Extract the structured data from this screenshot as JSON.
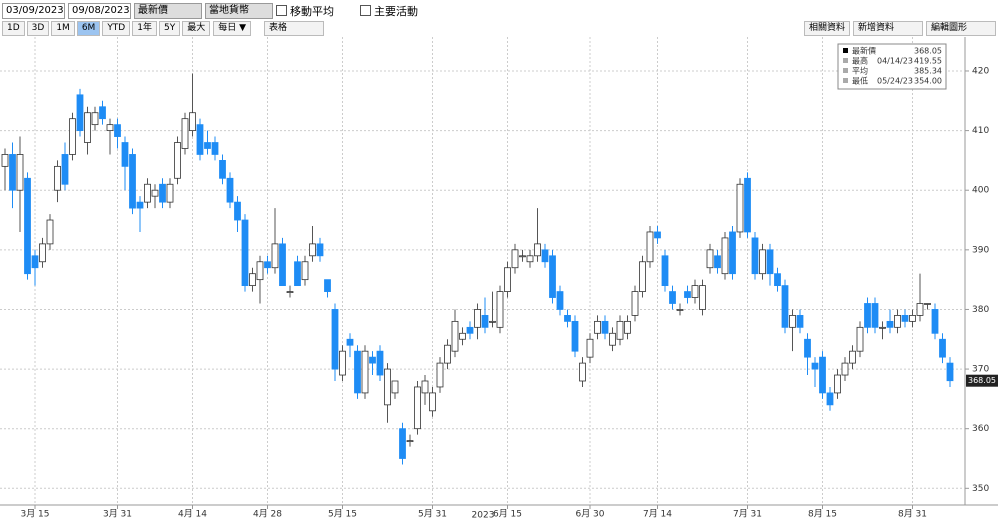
{
  "toolbar": {
    "start_date": "03/09/2023",
    "end_date": "09/08/2023",
    "price_field": "最新價",
    "currency": "當地貨幣",
    "moving_average": "移動平均",
    "key_events": "主要活動",
    "periods": [
      "1D",
      "3D",
      "1M",
      "6M",
      "YTD",
      "1年",
      "5Y",
      "最大"
    ],
    "selected_period": 3,
    "frequency": "每日 ▼",
    "table": "表格",
    "related": "相關資料",
    "add_data": "新增資料",
    "edit_chart": "編輯圖形"
  },
  "chart_data": {
    "type": "candlestick",
    "up_color": "#ffffff",
    "down_color": "#1e8cf5",
    "grid": true,
    "x_title": "2023",
    "categories": [
      null,
      null,
      null,
      null,
      "3月 15",
      null,
      null,
      null,
      null,
      null,
      null,
      null,
      null,
      null,
      null,
      "3月 31",
      null,
      null,
      null,
      null,
      null,
      null,
      null,
      null,
      null,
      "4月 14",
      null,
      null,
      null,
      null,
      null,
      null,
      null,
      null,
      null,
      "4月 28",
      null,
      null,
      null,
      null,
      null,
      null,
      null,
      null,
      null,
      "5月 15",
      null,
      null,
      null,
      null,
      null,
      null,
      null,
      null,
      null,
      null,
      null,
      "5月 31",
      null,
      null,
      null,
      null,
      null,
      null,
      null,
      null,
      null,
      "6月 15",
      null,
      null,
      null,
      null,
      null,
      null,
      null,
      null,
      null,
      null,
      "6月 30",
      null,
      null,
      null,
      null,
      null,
      null,
      null,
      null,
      "7月 14",
      null,
      null,
      null,
      null,
      null,
      null,
      null,
      null,
      null,
      null,
      null,
      "7月 31",
      null,
      null,
      null,
      null,
      null,
      null,
      null,
      null,
      null,
      "8月 15",
      null,
      null,
      null,
      null,
      null,
      null,
      null,
      null,
      null,
      null,
      null,
      "8月 31",
      null,
      null,
      null,
      null,
      null
    ],
    "open": [
      404,
      406,
      400,
      402,
      389,
      388,
      391,
      400,
      406,
      406,
      416,
      408,
      411,
      414,
      410,
      411,
      408,
      406,
      398,
      398,
      399,
      401,
      398,
      402,
      407,
      410,
      411,
      408,
      408,
      405,
      402,
      398,
      395,
      384,
      385,
      388,
      387,
      391,
      383,
      388,
      385,
      389,
      391,
      385,
      380,
      369,
      375,
      373,
      366,
      372,
      373,
      364,
      366,
      360,
      358,
      360,
      366,
      363,
      367,
      371,
      373,
      375,
      377,
      377,
      379,
      378,
      377,
      383,
      387,
      389,
      388,
      389,
      390,
      389,
      383,
      379,
      378,
      368,
      372,
      376,
      378,
      374,
      375,
      376,
      379,
      383,
      388,
      393,
      389,
      383,
      380,
      383,
      382,
      380,
      387,
      389,
      386,
      393,
      393,
      402,
      392,
      386,
      390,
      386,
      384,
      377,
      379,
      375,
      371,
      372,
      366,
      366,
      369,
      371,
      373,
      381,
      381,
      377,
      378,
      377,
      379,
      378,
      379,
      381,
      380,
      375,
      371
    ],
    "high": [
      407,
      408,
      409,
      403,
      390,
      392,
      396,
      405,
      408,
      413,
      417,
      414,
      414,
      415,
      412,
      412,
      409,
      407,
      399,
      402,
      401,
      402,
      402,
      409,
      413,
      419.55,
      412,
      410,
      409,
      406,
      403,
      399,
      396,
      387,
      389,
      389,
      397,
      392,
      384,
      389,
      389,
      394,
      392,
      385,
      381,
      374,
      376,
      374,
      374,
      373,
      374,
      371,
      368,
      361,
      359,
      368,
      369,
      367,
      372,
      375,
      380,
      377,
      378,
      381,
      382,
      383,
      384,
      388,
      391,
      390,
      390,
      397,
      391,
      390,
      384,
      380,
      379,
      372,
      376,
      379,
      379,
      377,
      379,
      379,
      384,
      389,
      394,
      394,
      390,
      384,
      381,
      384,
      385,
      385,
      391,
      390,
      393,
      394,
      402,
      403,
      393,
      391,
      391,
      387,
      385,
      380,
      380,
      376,
      372,
      373,
      367,
      370,
      372,
      374,
      378,
      382,
      382,
      378,
      380,
      380,
      380,
      380,
      386,
      381,
      381,
      376,
      372
    ],
    "low": [
      400,
      397,
      393,
      385,
      384,
      387,
      390,
      398,
      400,
      405,
      409,
      406,
      410,
      411,
      406,
      407,
      400,
      396,
      393,
      397,
      397,
      397,
      397,
      401,
      406,
      409,
      405,
      406,
      405,
      401,
      397,
      393,
      383,
      383,
      381,
      386,
      386,
      384,
      382,
      384,
      384,
      388,
      388,
      382,
      368,
      368,
      372,
      365,
      365,
      369,
      368,
      361,
      365,
      354,
      357,
      359,
      364,
      362,
      366,
      370,
      372,
      374,
      375,
      375,
      376,
      377,
      376,
      382,
      386,
      388,
      387,
      388,
      387,
      381,
      379,
      377,
      372,
      367,
      371,
      375,
      375,
      373,
      374,
      375,
      378,
      382,
      387,
      391,
      383,
      380,
      379,
      381,
      381,
      379,
      386,
      386,
      385,
      385,
      392,
      392,
      385,
      385,
      384,
      383,
      376,
      373,
      376,
      369,
      367,
      365,
      363,
      365,
      368,
      370,
      372,
      376,
      376,
      375,
      376,
      376,
      377,
      377,
      378,
      380,
      375,
      371,
      367
    ],
    "close": [
      406,
      400,
      406,
      386,
      387,
      391,
      395,
      404,
      401,
      412,
      410,
      413,
      413,
      412,
      411,
      409,
      404,
      397,
      397,
      401,
      400,
      398,
      401,
      408,
      412,
      413,
      406,
      407,
      406,
      402,
      398,
      395,
      384,
      386,
      388,
      387,
      391,
      384,
      383,
      384,
      388,
      391,
      389,
      383,
      370,
      373,
      374,
      366,
      373,
      371,
      369,
      370,
      368,
      355,
      358,
      367,
      368,
      366,
      371,
      374,
      378,
      376,
      376,
      380,
      377,
      378,
      383,
      387,
      390,
      389,
      389,
      391,
      388,
      382,
      380,
      378,
      373,
      371,
      375,
      378,
      376,
      376,
      378,
      378,
      383,
      388,
      393,
      392,
      384,
      381,
      380,
      382,
      384,
      384,
      390,
      387,
      392,
      386,
      401,
      393,
      386,
      390,
      386,
      384,
      377,
      379,
      377,
      372,
      370,
      366,
      364,
      369,
      371,
      373,
      377,
      377,
      377,
      377,
      377,
      379,
      378,
      379,
      381,
      381,
      376,
      372,
      368.05
    ],
    "ylim": [
      347.2,
      425.7
    ],
    "yticks": [
      350,
      360,
      370,
      380,
      390,
      400,
      410,
      420
    ],
    "last_label": "368.05",
    "summary": [
      [
        "最新價",
        "",
        "368.05"
      ],
      [
        "最高",
        "04/14/23",
        "419.55"
      ],
      [
        "平均",
        "",
        "385.34"
      ],
      [
        "最低",
        "05/24/23",
        "354.00"
      ]
    ]
  }
}
